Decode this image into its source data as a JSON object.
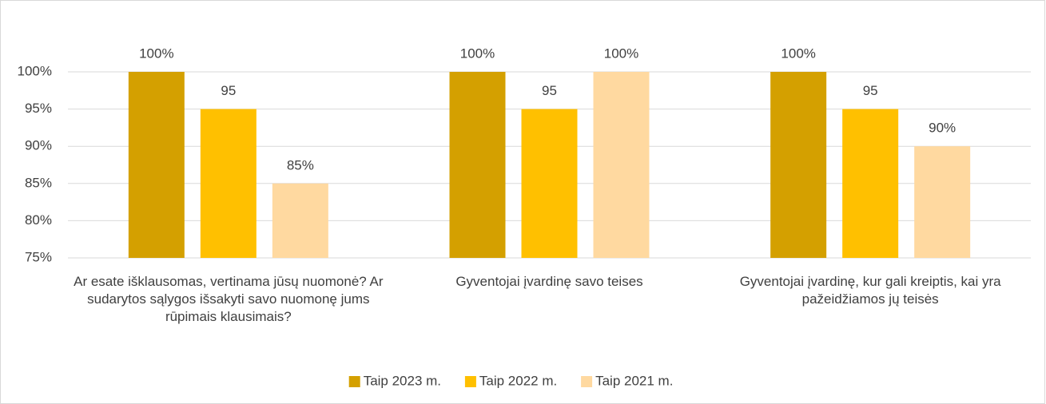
{
  "chart_data": {
    "type": "bar",
    "categories": [
      "Ar esate išklausomas, vertinama jūsų nuomonė? Ar sudarytos sąlygos išsakyti savo nuomonę jums rūpimais klausimais?",
      "Gyventojai įvardinę savo teises",
      "Gyventojai įvardinę, kur gali kreiptis, kai yra pažeidžiamos jų teisės"
    ],
    "series": [
      {
        "name": "Taip 2023 m.",
        "color": "#d4a000",
        "values": [
          100,
          100,
          100
        ],
        "value_labels": [
          "100%",
          "100%",
          "100%"
        ]
      },
      {
        "name": "Taip 2022 m.",
        "color": "#ffc000",
        "values": [
          95,
          95,
          95
        ],
        "value_labels": [
          "95",
          "95",
          "95"
        ]
      },
      {
        "name": "Taip 2021 m.",
        "color": "#ffd9a0",
        "values": [
          85,
          100,
          90
        ],
        "value_labels": [
          "85%",
          "100%",
          "90%"
        ]
      }
    ],
    "ylim": [
      75,
      100
    ],
    "yticks": [
      {
        "value": 75,
        "label": "75%"
      },
      {
        "value": 80,
        "label": "80%"
      },
      {
        "value": 85,
        "label": "85%"
      },
      {
        "value": 90,
        "label": "90%"
      },
      {
        "value": 95,
        "label": "95%"
      },
      {
        "value": 100,
        "label": "100%"
      }
    ],
    "grid": true,
    "legend": "bottom"
  }
}
